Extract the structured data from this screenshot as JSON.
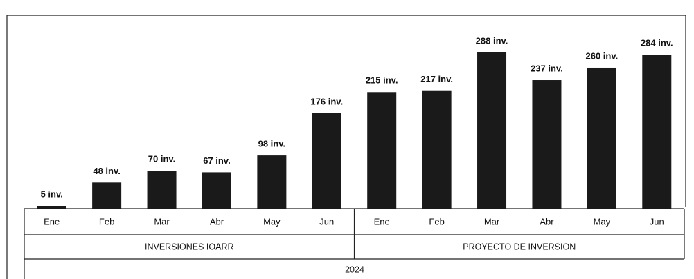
{
  "chart_data": {
    "type": "bar",
    "categories": [
      "Ene",
      "Feb",
      "Mar",
      "Abr",
      "May",
      "Jun",
      "Ene",
      "Feb",
      "Mar",
      "Abr",
      "May",
      "Jun"
    ],
    "values": [
      5,
      48,
      70,
      67,
      98,
      176,
      215,
      217,
      288,
      237,
      260,
      284
    ],
    "value_labels": [
      "5 inv.",
      "48 inv.",
      "70 inv.",
      "67 inv.",
      "98 inv.",
      "176 inv.",
      "215 inv.",
      "217 inv.",
      "288 inv.",
      "237 inv.",
      "260 inv.",
      "284 inv."
    ],
    "groups": [
      "INVERSIONES IOARR",
      "PROYECTO DE INVERSION"
    ],
    "year": "2024",
    "color": "#1a1a1a"
  }
}
